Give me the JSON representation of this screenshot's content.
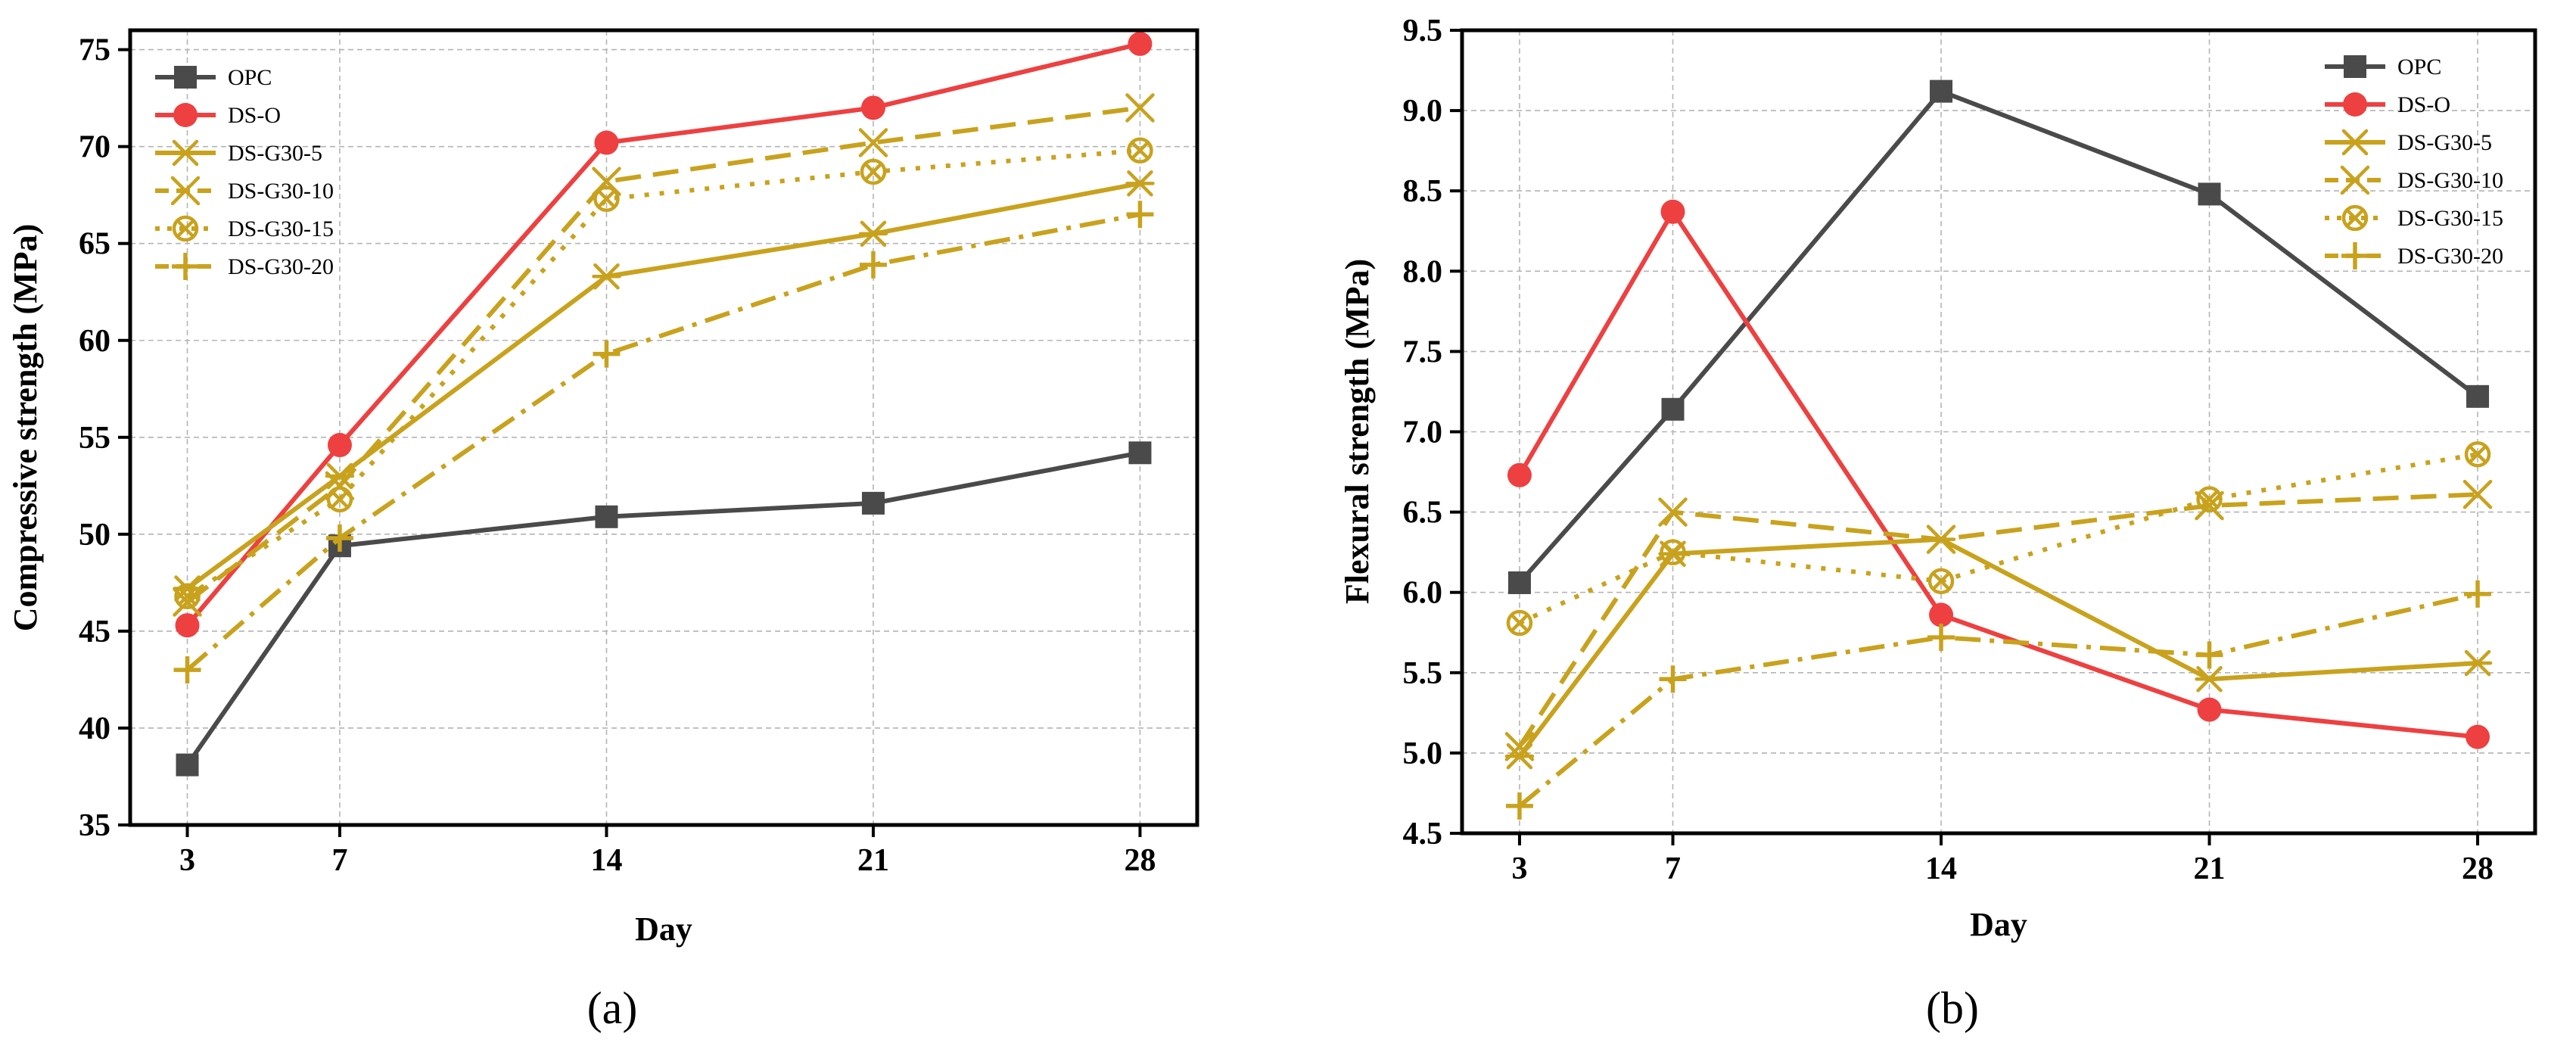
{
  "chart_data": [
    {
      "type": "line",
      "panel_label": "(a)",
      "xlabel": "Day",
      "ylabel": "Compressive strength (MPa)",
      "x": [
        3,
        7,
        14,
        21,
        28
      ],
      "x_tick_labels": [
        "3",
        "7",
        "14",
        "21",
        "28"
      ],
      "ylim": [
        35,
        76
      ],
      "y_ticks": [
        35,
        40,
        45,
        50,
        55,
        60,
        65,
        70,
        75
      ],
      "y_tick_labels": [
        "35",
        "40",
        "45",
        "50",
        "55",
        "60",
        "65",
        "70",
        "75"
      ],
      "grid": true,
      "legend_position": "top-left",
      "series": [
        {
          "name": "OPC",
          "color": "#4a4a4a",
          "dash": "solid",
          "marker": "square",
          "values": [
            38.1,
            49.4,
            50.9,
            51.6,
            54.2
          ]
        },
        {
          "name": "DS-O",
          "color": "#ee4040",
          "dash": "solid",
          "marker": "circle",
          "values": [
            45.3,
            54.6,
            70.2,
            72.0,
            75.3
          ]
        },
        {
          "name": "DS-G30-5",
          "color": "#c9a21d",
          "dash": "solid",
          "marker": "asterisk",
          "values": [
            47.2,
            53.0,
            63.3,
            65.5,
            68.1
          ]
        },
        {
          "name": "DS-G30-10",
          "color": "#c9a21d",
          "dash": "dash",
          "marker": "x",
          "values": [
            46.5,
            52.5,
            68.2,
            70.2,
            72.0
          ]
        },
        {
          "name": "DS-G30-15",
          "color": "#c9a21d",
          "dash": "dot",
          "marker": "circle-x",
          "values": [
            46.8,
            51.8,
            67.3,
            68.7,
            69.8
          ]
        },
        {
          "name": "DS-G30-20",
          "color": "#c9a21d",
          "dash": "dashdot",
          "marker": "plus",
          "values": [
            43.0,
            49.8,
            59.3,
            63.9,
            66.5
          ]
        }
      ]
    },
    {
      "type": "line",
      "panel_label": "(b)",
      "xlabel": "Day",
      "ylabel": "Flexural strength (MPa)",
      "x": [
        3,
        7,
        14,
        21,
        28
      ],
      "x_tick_labels": [
        "3",
        "7",
        "14",
        "21",
        "28"
      ],
      "ylim": [
        4.5,
        9.5
      ],
      "y_ticks": [
        4.5,
        5.0,
        5.5,
        6.0,
        6.5,
        7.0,
        7.5,
        8.0,
        8.5,
        9.0,
        9.5
      ],
      "y_tick_labels": [
        "4.5",
        "5.0",
        "5.5",
        "6.0",
        "6.5",
        "7.0",
        "7.5",
        "8.0",
        "8.5",
        "9.0",
        "9.5"
      ],
      "grid": true,
      "legend_position": "top-right",
      "series": [
        {
          "name": "OPC",
          "color": "#4a4a4a",
          "dash": "solid",
          "marker": "square",
          "values": [
            6.06,
            7.14,
            9.12,
            8.48,
            7.22
          ]
        },
        {
          "name": "DS-O",
          "color": "#ee4040",
          "dash": "solid",
          "marker": "circle",
          "values": [
            6.73,
            8.37,
            5.86,
            5.27,
            5.1
          ]
        },
        {
          "name": "DS-G30-5",
          "color": "#c9a21d",
          "dash": "solid",
          "marker": "asterisk",
          "values": [
            4.98,
            6.24,
            6.33,
            5.46,
            5.56
          ]
        },
        {
          "name": "DS-G30-10",
          "color": "#c9a21d",
          "dash": "dash",
          "marker": "x",
          "values": [
            5.04,
            6.5,
            6.33,
            6.54,
            6.61
          ]
        },
        {
          "name": "DS-G30-15",
          "color": "#c9a21d",
          "dash": "dot",
          "marker": "circle-x",
          "values": [
            5.81,
            6.25,
            6.07,
            6.58,
            6.86
          ]
        },
        {
          "name": "DS-G30-20",
          "color": "#c9a21d",
          "dash": "dashdot",
          "marker": "plus",
          "values": [
            4.67,
            5.46,
            5.72,
            5.61,
            5.99
          ]
        }
      ]
    }
  ]
}
